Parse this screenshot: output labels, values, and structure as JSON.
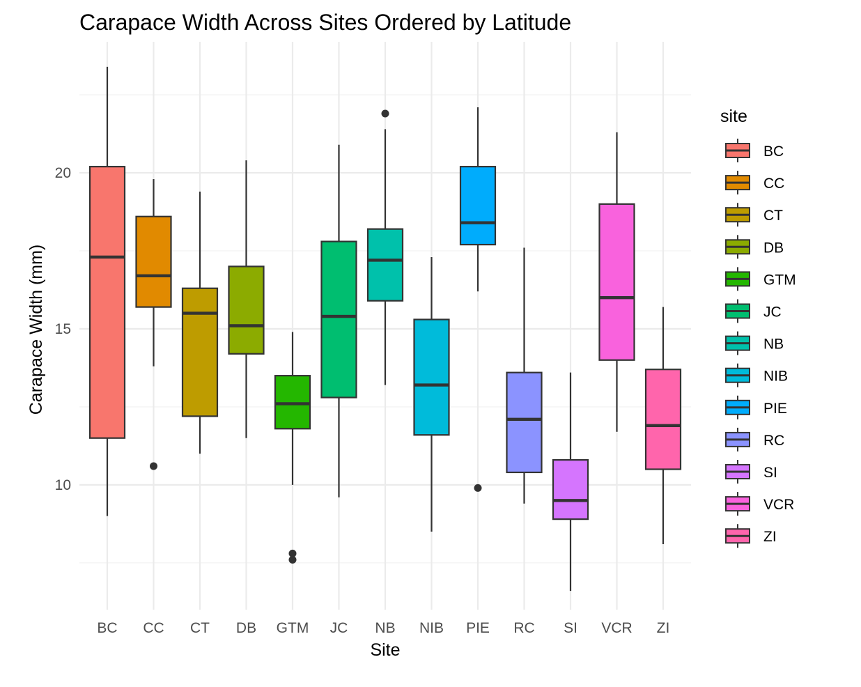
{
  "chart_data": {
    "type": "boxplot",
    "title": "Carapace Width Across Sites Ordered by Latitude",
    "xlabel": "Site",
    "ylabel": "Carapace Width (mm)",
    "ylim": [
      6.0,
      24.2
    ],
    "yticks": [
      10,
      15,
      20
    ],
    "grid": true,
    "legend_title": "site",
    "legend_position": "right",
    "categories": [
      "BC",
      "CC",
      "CT",
      "DB",
      "GTM",
      "JC",
      "NB",
      "NIB",
      "PIE",
      "RC",
      "SI",
      "VCR",
      "ZI"
    ],
    "series": [
      {
        "name": "BC",
        "color": "#F8766D",
        "whisker_low": 9.0,
        "q1": 11.5,
        "median": 17.3,
        "q3": 20.2,
        "whisker_high": 23.4,
        "outliers": []
      },
      {
        "name": "CC",
        "color": "#E18A00",
        "whisker_low": 13.8,
        "q1": 15.7,
        "median": 16.7,
        "q3": 18.6,
        "whisker_high": 19.8,
        "outliers": [
          10.6
        ]
      },
      {
        "name": "CT",
        "color": "#BE9C00",
        "whisker_low": 11.0,
        "q1": 12.2,
        "median": 15.5,
        "q3": 16.3,
        "whisker_high": 19.4,
        "outliers": []
      },
      {
        "name": "DB",
        "color": "#8CAB00",
        "whisker_low": 11.5,
        "q1": 14.2,
        "median": 15.1,
        "q3": 17.0,
        "whisker_high": 20.4,
        "outliers": []
      },
      {
        "name": "GTM",
        "color": "#24B700",
        "whisker_low": 10.0,
        "q1": 11.8,
        "median": 12.6,
        "q3": 13.5,
        "whisker_high": 14.9,
        "outliers": [
          7.8,
          7.6
        ]
      },
      {
        "name": "JC",
        "color": "#00BE70",
        "whisker_low": 9.6,
        "q1": 12.8,
        "median": 15.4,
        "q3": 17.8,
        "whisker_high": 20.9,
        "outliers": []
      },
      {
        "name": "NB",
        "color": "#00C1AB",
        "whisker_low": 13.2,
        "q1": 15.9,
        "median": 17.2,
        "q3": 18.2,
        "whisker_high": 21.4,
        "outliers": [
          21.9
        ]
      },
      {
        "name": "NIB",
        "color": "#00BBDA",
        "whisker_low": 8.5,
        "q1": 11.6,
        "median": 13.2,
        "q3": 15.3,
        "whisker_high": 17.3,
        "outliers": []
      },
      {
        "name": "PIE",
        "color": "#00ACFC",
        "whisker_low": 16.2,
        "q1": 17.7,
        "median": 18.4,
        "q3": 20.2,
        "whisker_high": 22.1,
        "outliers": [
          9.9
        ]
      },
      {
        "name": "RC",
        "color": "#8B93FF",
        "whisker_low": 9.4,
        "q1": 10.4,
        "median": 12.1,
        "q3": 13.6,
        "whisker_high": 17.6,
        "outliers": []
      },
      {
        "name": "SI",
        "color": "#D575FE",
        "whisker_low": 6.6,
        "q1": 8.9,
        "median": 9.5,
        "q3": 10.8,
        "whisker_high": 13.6,
        "outliers": []
      },
      {
        "name": "VCR",
        "color": "#F962DD",
        "whisker_low": 11.7,
        "q1": 14.0,
        "median": 16.0,
        "q3": 19.0,
        "whisker_high": 21.3,
        "outliers": []
      },
      {
        "name": "ZI",
        "color": "#FF65AC",
        "whisker_low": 8.1,
        "q1": 10.5,
        "median": 11.9,
        "q3": 13.7,
        "whisker_high": 15.7,
        "outliers": []
      }
    ]
  }
}
